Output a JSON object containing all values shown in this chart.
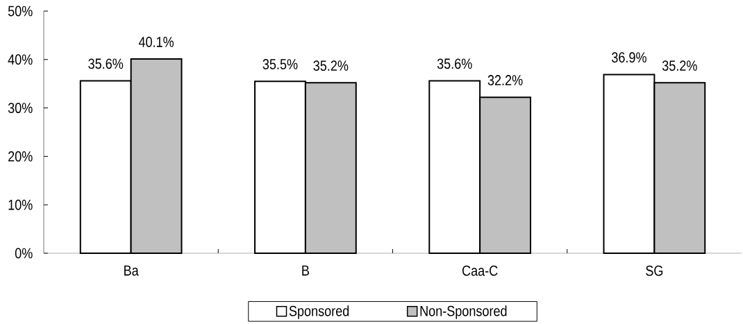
{
  "chart_data": {
    "type": "bar",
    "categories": [
      "Ba",
      "B",
      "Caa-C",
      "SG"
    ],
    "series": [
      {
        "name": "Sponsored",
        "color": "#ffffff",
        "values": [
          35.6,
          35.5,
          35.6,
          36.9
        ],
        "value_labels": [
          "35.6%",
          "35.5%",
          "35.6%",
          "36.9%"
        ]
      },
      {
        "name": "Non-Sponsored",
        "color": "#c0c0c0",
        "values": [
          40.1,
          35.2,
          32.2,
          35.2
        ],
        "value_labels": [
          "40.1%",
          "35.2%",
          "32.2%",
          "35.2%"
        ]
      }
    ],
    "ylim": [
      0,
      50
    ],
    "yticks": [
      {
        "value": 0,
        "label": "0%"
      },
      {
        "value": 10,
        "label": "10%"
      },
      {
        "value": 20,
        "label": "20%"
      },
      {
        "value": 30,
        "label": "30%"
      },
      {
        "value": 40,
        "label": "40%"
      },
      {
        "value": 50,
        "label": "50%"
      }
    ],
    "legend": "bottom"
  }
}
